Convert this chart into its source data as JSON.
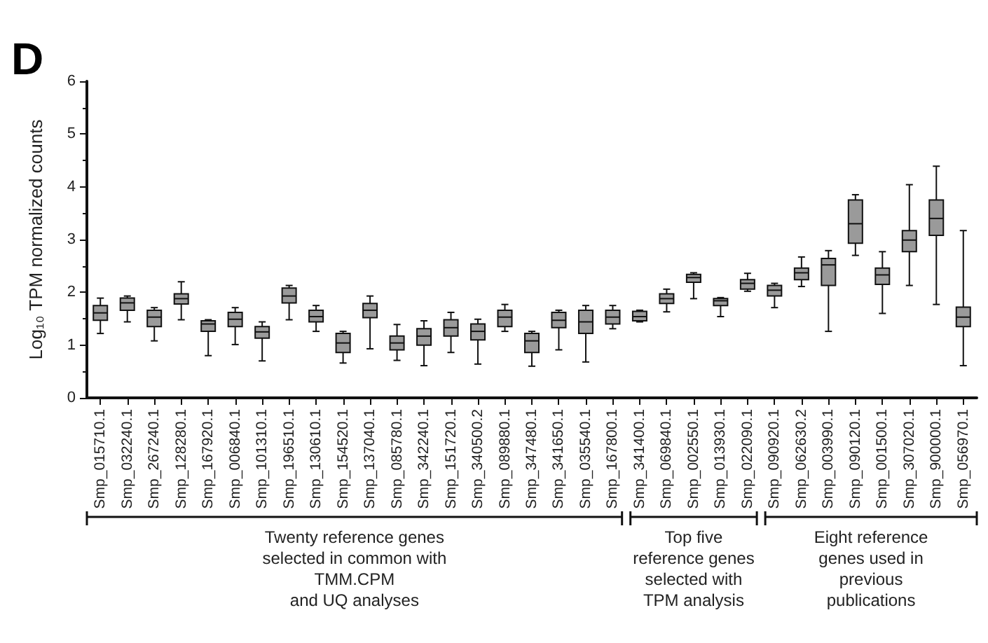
{
  "chart_data": {
    "type": "box",
    "ylabel": "Log₁₀ TPM normalized counts",
    "annotations": [
      "D",
      "Twenty reference genes\nselected in common with\nTMM.CPM\nand UQ analyses",
      "Top five\nreference genes\nselected with\nTPM analysis",
      "Eight reference\ngenes used in\nprevious\npublications"
    ],
    "categories": [
      "Smp_015710.1",
      "Smp_032240.1",
      "Smp_267240.1",
      "Smp_128280.1",
      "Smp_167920.1",
      "Smp_006840.1",
      "Smp_101310.1",
      "Smp_196510.1",
      "Smp_130610.1",
      "Smp_154520.1",
      "Smp_137040.1",
      "Smp_085780.1",
      "Smp_342240.1",
      "Smp_151720.1",
      "Smp_340500.2",
      "Smp_089880.1",
      "Smp_347480.1",
      "Smp_341650.1",
      "Smp_035540.1",
      "Smp_167800.1",
      "Smp_341400.1",
      "Smp_069840.1",
      "Smp_002550.1",
      "Smp_013930.1",
      "Smp_022090.1",
      "Smp_090920.1",
      "Smp_062630.2",
      "Smp_003990.1",
      "Smp_090120.1",
      "Smp_001500.1",
      "Smp_307020.1",
      "Smp_900000.1",
      "Smp_056970.1"
    ],
    "color": "#9a9a9a",
    "boxes": [
      {
        "low": 1.22,
        "q1": 1.47,
        "median": 1.61,
        "q3": 1.75,
        "high": 1.89
      },
      {
        "low": 1.44,
        "q1": 1.66,
        "median": 1.8,
        "q3": 1.89,
        "high": 1.93
      },
      {
        "low": 1.08,
        "q1": 1.35,
        "median": 1.53,
        "q3": 1.66,
        "high": 1.71
      },
      {
        "low": 1.48,
        "q1": 1.78,
        "median": 1.88,
        "q3": 1.97,
        "high": 2.2
      },
      {
        "low": 0.8,
        "q1": 1.26,
        "median": 1.4,
        "q3": 1.46,
        "high": 1.48
      },
      {
        "low": 1.01,
        "q1": 1.35,
        "median": 1.49,
        "q3": 1.62,
        "high": 1.71
      },
      {
        "low": 0.7,
        "q1": 1.13,
        "median": 1.25,
        "q3": 1.35,
        "high": 1.44
      },
      {
        "low": 1.48,
        "q1": 1.8,
        "median": 1.93,
        "q3": 2.08,
        "high": 2.13
      },
      {
        "low": 1.26,
        "q1": 1.44,
        "median": 1.54,
        "q3": 1.66,
        "high": 1.75
      },
      {
        "low": 0.66,
        "q1": 0.86,
        "median": 1.04,
        "q3": 1.22,
        "high": 1.26
      },
      {
        "low": 0.93,
        "q1": 1.52,
        "median": 1.66,
        "q3": 1.79,
        "high": 1.93
      },
      {
        "low": 0.71,
        "q1": 0.91,
        "median": 1.04,
        "q3": 1.17,
        "high": 1.39
      },
      {
        "low": 0.61,
        "q1": 1.0,
        "median": 1.17,
        "q3": 1.31,
        "high": 1.46
      },
      {
        "low": 0.86,
        "q1": 1.17,
        "median": 1.33,
        "q3": 1.48,
        "high": 1.62
      },
      {
        "low": 0.64,
        "q1": 1.1,
        "median": 1.26,
        "q3": 1.4,
        "high": 1.49
      },
      {
        "low": 1.26,
        "q1": 1.35,
        "median": 1.53,
        "q3": 1.66,
        "high": 1.77
      },
      {
        "low": 0.6,
        "q1": 0.86,
        "median": 1.08,
        "q3": 1.22,
        "high": 1.26
      },
      {
        "low": 0.91,
        "q1": 1.33,
        "median": 1.47,
        "q3": 1.62,
        "high": 1.66
      },
      {
        "low": 0.68,
        "q1": 1.22,
        "median": 1.44,
        "q3": 1.66,
        "high": 1.75
      },
      {
        "low": 1.31,
        "q1": 1.4,
        "median": 1.53,
        "q3": 1.66,
        "high": 1.75
      },
      {
        "low": 1.44,
        "q1": 1.46,
        "median": 1.54,
        "q3": 1.64,
        "high": 1.66
      },
      {
        "low": 1.63,
        "q1": 1.79,
        "median": 1.88,
        "q3": 1.97,
        "high": 2.06
      },
      {
        "low": 1.88,
        "q1": 2.19,
        "median": 2.28,
        "q3": 2.34,
        "high": 2.37
      },
      {
        "low": 1.54,
        "q1": 1.75,
        "median": 1.84,
        "q3": 1.88,
        "high": 1.9
      },
      {
        "low": 2.02,
        "q1": 2.06,
        "median": 2.17,
        "q3": 2.24,
        "high": 2.36
      },
      {
        "low": 1.71,
        "q1": 1.93,
        "median": 2.04,
        "q3": 2.13,
        "high": 2.17
      },
      {
        "low": 2.11,
        "q1": 2.24,
        "median": 2.37,
        "q3": 2.46,
        "high": 2.67
      },
      {
        "low": 1.26,
        "q1": 2.13,
        "median": 2.52,
        "q3": 2.64,
        "high": 2.79
      },
      {
        "low": 2.7,
        "q1": 2.93,
        "median": 3.3,
        "q3": 3.75,
        "high": 3.85
      },
      {
        "low": 1.6,
        "q1": 2.15,
        "median": 2.33,
        "q3": 2.46,
        "high": 2.77
      },
      {
        "low": 2.13,
        "q1": 2.77,
        "median": 2.99,
        "q3": 3.17,
        "high": 4.04
      },
      {
        "low": 1.77,
        "q1": 3.08,
        "median": 3.4,
        "q3": 3.75,
        "high": 4.39
      },
      {
        "low": 0.61,
        "q1": 1.35,
        "median": 1.53,
        "q3": 1.72,
        "high": 3.17
      }
    ],
    "ylim": [
      0,
      6
    ],
    "yticks": [
      0,
      1,
      2,
      3,
      4,
      5,
      6
    ],
    "grid": false
  }
}
